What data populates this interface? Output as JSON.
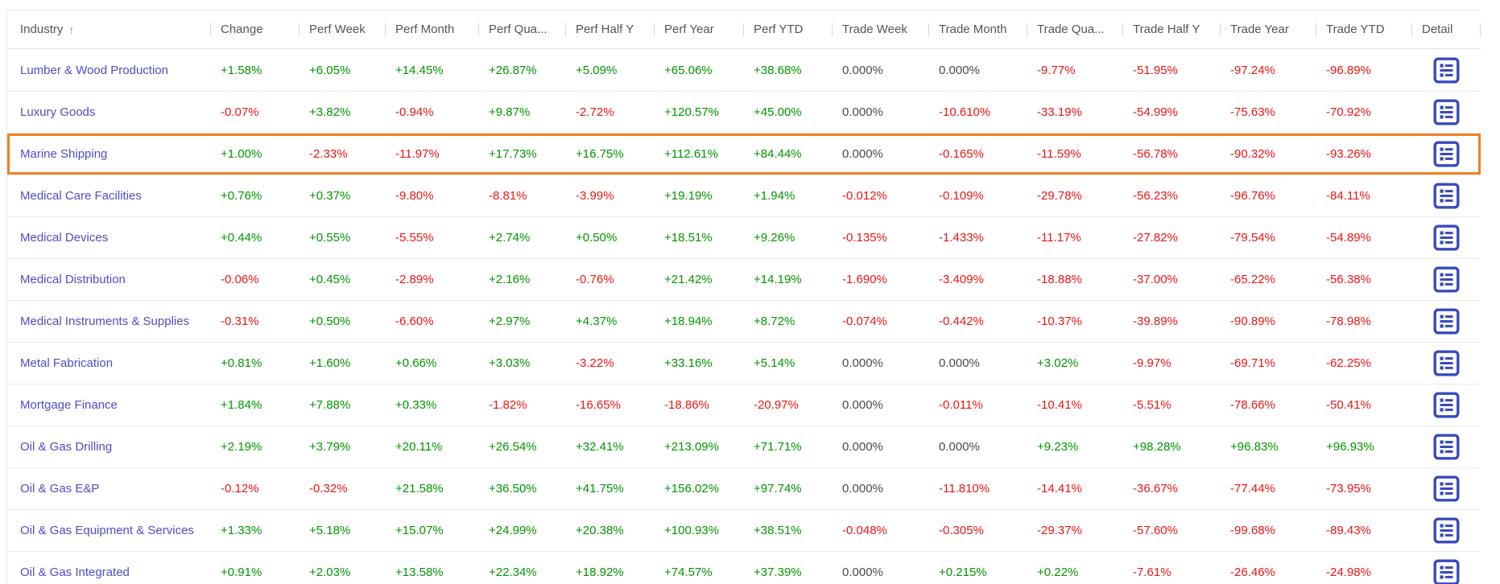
{
  "table": {
    "sort_arrow": "↑",
    "sorted_column": "Industry",
    "columns": [
      "Industry",
      "Change",
      "Perf Week",
      "Perf Month",
      "Perf Qua...",
      "Perf Half Y",
      "Perf Year",
      "Perf YTD",
      "Trade Week",
      "Trade Month",
      "Trade Qua...",
      "Trade Half Y",
      "Trade Year",
      "Trade YTD",
      "Detail"
    ],
    "detail_icon": "detail-list-icon",
    "rows": [
      {
        "industry": "Lumber & Wood Production",
        "highlighted": false,
        "values": [
          "+1.58%",
          "+6.05%",
          "+14.45%",
          "+26.87%",
          "+5.09%",
          "+65.06%",
          "+38.68%",
          "0.000%",
          "0.000%",
          "-9.77%",
          "-51.95%",
          "-97.24%",
          "-96.89%"
        ]
      },
      {
        "industry": "Luxury Goods",
        "highlighted": false,
        "values": [
          "-0.07%",
          "+3.82%",
          "-0.94%",
          "+9.87%",
          "-2.72%",
          "+120.57%",
          "+45.00%",
          "0.000%",
          "-10.610%",
          "-33.19%",
          "-54.99%",
          "-75.63%",
          "-70.92%"
        ]
      },
      {
        "industry": "Marine Shipping",
        "highlighted": true,
        "values": [
          "+1.00%",
          "-2.33%",
          "-11.97%",
          "+17.73%",
          "+16.75%",
          "+112.61%",
          "+84.44%",
          "0.000%",
          "-0.165%",
          "-11.59%",
          "-56.78%",
          "-90.32%",
          "-93.26%"
        ]
      },
      {
        "industry": "Medical Care Facilities",
        "highlighted": false,
        "values": [
          "+0.76%",
          "+0.37%",
          "-9.80%",
          "-8.81%",
          "-3.99%",
          "+19.19%",
          "+1.94%",
          "-0.012%",
          "-0.109%",
          "-29.78%",
          "-56.23%",
          "-96.76%",
          "-84.11%"
        ]
      },
      {
        "industry": "Medical Devices",
        "highlighted": false,
        "values": [
          "+0.44%",
          "+0.55%",
          "-5.55%",
          "+2.74%",
          "+0.50%",
          "+18.51%",
          "+9.26%",
          "-0.135%",
          "-1.433%",
          "-11.17%",
          "-27.82%",
          "-79.54%",
          "-54.89%"
        ]
      },
      {
        "industry": "Medical Distribution",
        "highlighted": false,
        "values": [
          "-0.06%",
          "+0.45%",
          "-2.89%",
          "+2.16%",
          "-0.76%",
          "+21.42%",
          "+14.19%",
          "-1.690%",
          "-3.409%",
          "-18.88%",
          "-37.00%",
          "-65.22%",
          "-56.38%"
        ]
      },
      {
        "industry": "Medical Instruments & Supplies",
        "highlighted": false,
        "values": [
          "-0.31%",
          "+0.50%",
          "-6.60%",
          "+2.97%",
          "+4.37%",
          "+18.94%",
          "+8.72%",
          "-0.074%",
          "-0.442%",
          "-10.37%",
          "-39.89%",
          "-90.89%",
          "-78.98%"
        ]
      },
      {
        "industry": "Metal Fabrication",
        "highlighted": false,
        "values": [
          "+0.81%",
          "+1.60%",
          "+0.66%",
          "+3.03%",
          "-3.22%",
          "+33.16%",
          "+5.14%",
          "0.000%",
          "0.000%",
          "+3.02%",
          "-9.97%",
          "-69.71%",
          "-62.25%"
        ]
      },
      {
        "industry": "Mortgage Finance",
        "highlighted": false,
        "values": [
          "+1.84%",
          "+7.88%",
          "+0.33%",
          "-1.82%",
          "-16.65%",
          "-18.86%",
          "-20.97%",
          "0.000%",
          "-0.011%",
          "-10.41%",
          "-5.51%",
          "-78.66%",
          "-50.41%"
        ]
      },
      {
        "industry": "Oil & Gas Drilling",
        "highlighted": false,
        "values": [
          "+2.19%",
          "+3.79%",
          "+20.11%",
          "+26.54%",
          "+32.41%",
          "+213.09%",
          "+71.71%",
          "0.000%",
          "0.000%",
          "+9.23%",
          "+98.28%",
          "+96.83%",
          "+96.93%"
        ]
      },
      {
        "industry": "Oil & Gas E&P",
        "highlighted": false,
        "values": [
          "-0.12%",
          "-0.32%",
          "+21.58%",
          "+36.50%",
          "+41.75%",
          "+156.02%",
          "+97.74%",
          "0.000%",
          "-11.810%",
          "-14.41%",
          "-36.67%",
          "-77.44%",
          "-73.95%"
        ]
      },
      {
        "industry": "Oil & Gas Equipment & Services",
        "highlighted": false,
        "values": [
          "+1.33%",
          "+5.18%",
          "+15.07%",
          "+24.99%",
          "+20.38%",
          "+100.93%",
          "+38.51%",
          "-0.048%",
          "-0.305%",
          "-29.37%",
          "-57.60%",
          "-99.68%",
          "-89.43%"
        ]
      },
      {
        "industry": "Oil & Gas Integrated",
        "highlighted": false,
        "values": [
          "+0.91%",
          "+2.03%",
          "+13.58%",
          "+22.34%",
          "+18.92%",
          "+74.57%",
          "+37.39%",
          "0.000%",
          "+0.215%",
          "+0.22%",
          "-7.61%",
          "-26.46%",
          "-24.98%"
        ]
      }
    ]
  },
  "colors": {
    "positive": "#009600",
    "negative": "#f01414",
    "neutral": "#4a4a4a",
    "link": "#4d4dce",
    "highlight": "#ee8222",
    "icon": "#3849bd",
    "header_text": "#555555"
  }
}
